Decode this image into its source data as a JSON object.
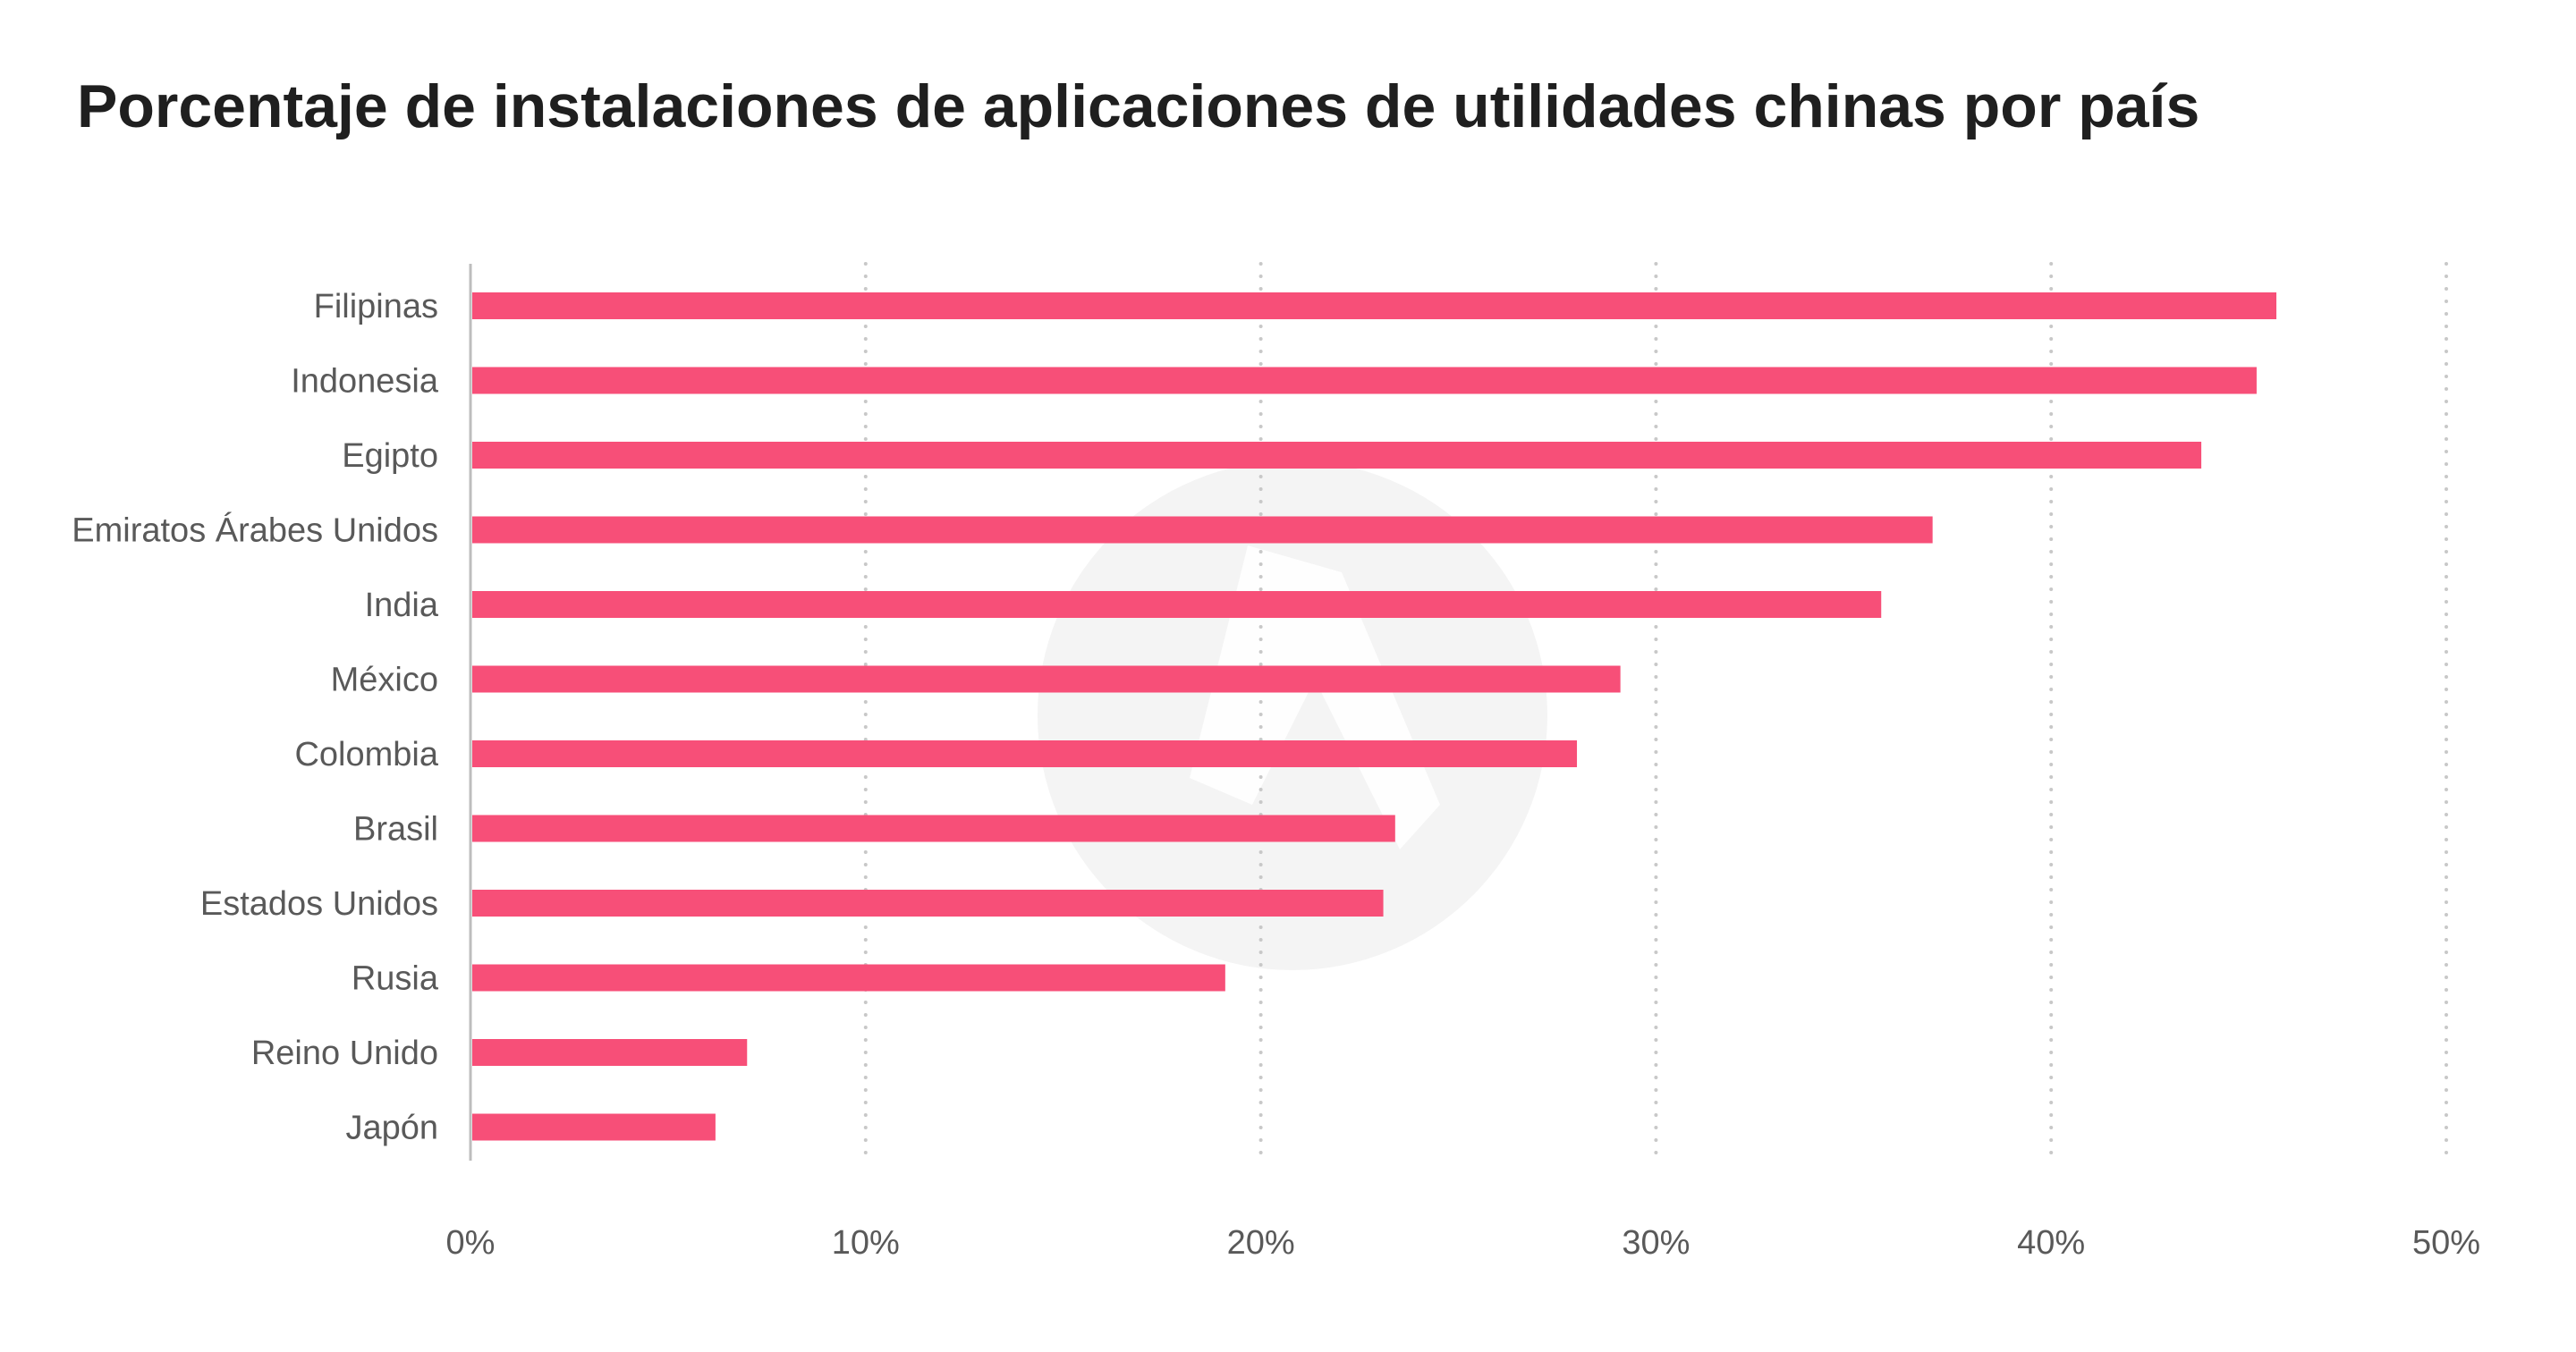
{
  "colors": {
    "bar": "#f74f78",
    "grid": "#c8c8c8",
    "axis": "#bdbdbd",
    "text": "#595959",
    "title": "#1f1f1f",
    "watermark": "#f4f4f4"
  },
  "chart_data": {
    "type": "bar",
    "orientation": "horizontal",
    "title": "Porcentaje de instalaciones de aplicaciones de utilidades chinas por país",
    "xlabel": "",
    "ylabel": "",
    "categories": [
      "Filipinas",
      "Indonesia",
      "Egipto",
      "Emiratos Árabes Unidos",
      "India",
      "México",
      "Colombia",
      "Brasil",
      "Estados Unidos",
      "Rusia",
      "Reino Unido",
      "Japón"
    ],
    "values": [
      45.7,
      45.2,
      43.8,
      37.0,
      35.7,
      29.1,
      28.0,
      23.4,
      23.1,
      19.1,
      7.0,
      6.2
    ],
    "unit": "%",
    "xlim": [
      0,
      50
    ],
    "ticks": [
      0,
      10,
      20,
      30,
      40,
      50
    ],
    "tick_labels": [
      "0%",
      "10%",
      "20%",
      "30%",
      "40%",
      "50%"
    ],
    "grid": "vertical-dotted",
    "legend": "none"
  }
}
